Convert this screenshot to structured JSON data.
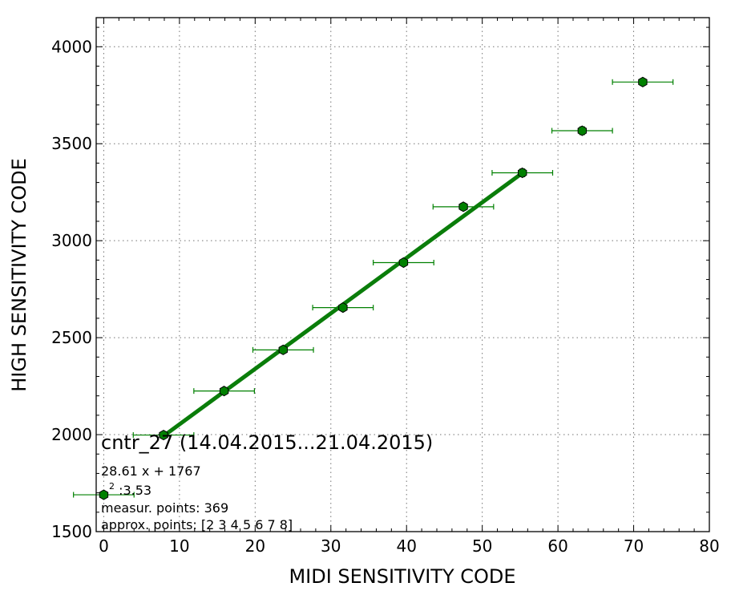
{
  "chart_data": {
    "type": "scatter",
    "xlabel": "MIDI SENSITIVITY CODE",
    "ylabel": "HIGH SENSITIVITY CODE",
    "xlim": [
      -1,
      80
    ],
    "ylim": [
      1500,
      4150
    ],
    "xticks": [
      "0",
      "10",
      "20",
      "30",
      "40",
      "50",
      "60",
      "70",
      "80"
    ],
    "yticks": [
      "1500",
      "2000",
      "2500",
      "3000",
      "3500",
      "4000"
    ],
    "grid": true,
    "points": [
      {
        "x": 0,
        "y": 1690,
        "xerr": 4,
        "yerr": 12
      },
      {
        "x": 7.9,
        "y": 1998,
        "xerr": 4,
        "yerr": 12
      },
      {
        "x": 15.9,
        "y": 2225,
        "xerr": 4,
        "yerr": 12
      },
      {
        "x": 23.7,
        "y": 2437,
        "xerr": 4,
        "yerr": 12
      },
      {
        "x": 31.6,
        "y": 2655,
        "xerr": 4,
        "yerr": 12
      },
      {
        "x": 39.6,
        "y": 2887,
        "xerr": 4,
        "yerr": 15
      },
      {
        "x": 47.5,
        "y": 3175,
        "xerr": 4,
        "yerr": 18
      },
      {
        "x": 55.3,
        "y": 3350,
        "xerr": 4,
        "yerr": 20
      },
      {
        "x": 63.2,
        "y": 3567,
        "xerr": 4,
        "yerr": 20
      },
      {
        "x": 71.2,
        "y": 3818,
        "xerr": 4,
        "yerr": 12
      }
    ],
    "fit": {
      "slope": 28.61,
      "intercept": 1767,
      "x_range": [
        7.9,
        55.3
      ]
    },
    "marker_color": "#008000",
    "line_color": "#0a7d0a",
    "annotations": {
      "title": "cntr_27 (14.04.2015...21.04.2015)",
      "equation": "28.61 x + 1767",
      "chi2": "2 :3.53",
      "measur_points": "measur. points: 369",
      "approx_points": "approx. points: [2 3 4 5 6 7 8]"
    }
  }
}
